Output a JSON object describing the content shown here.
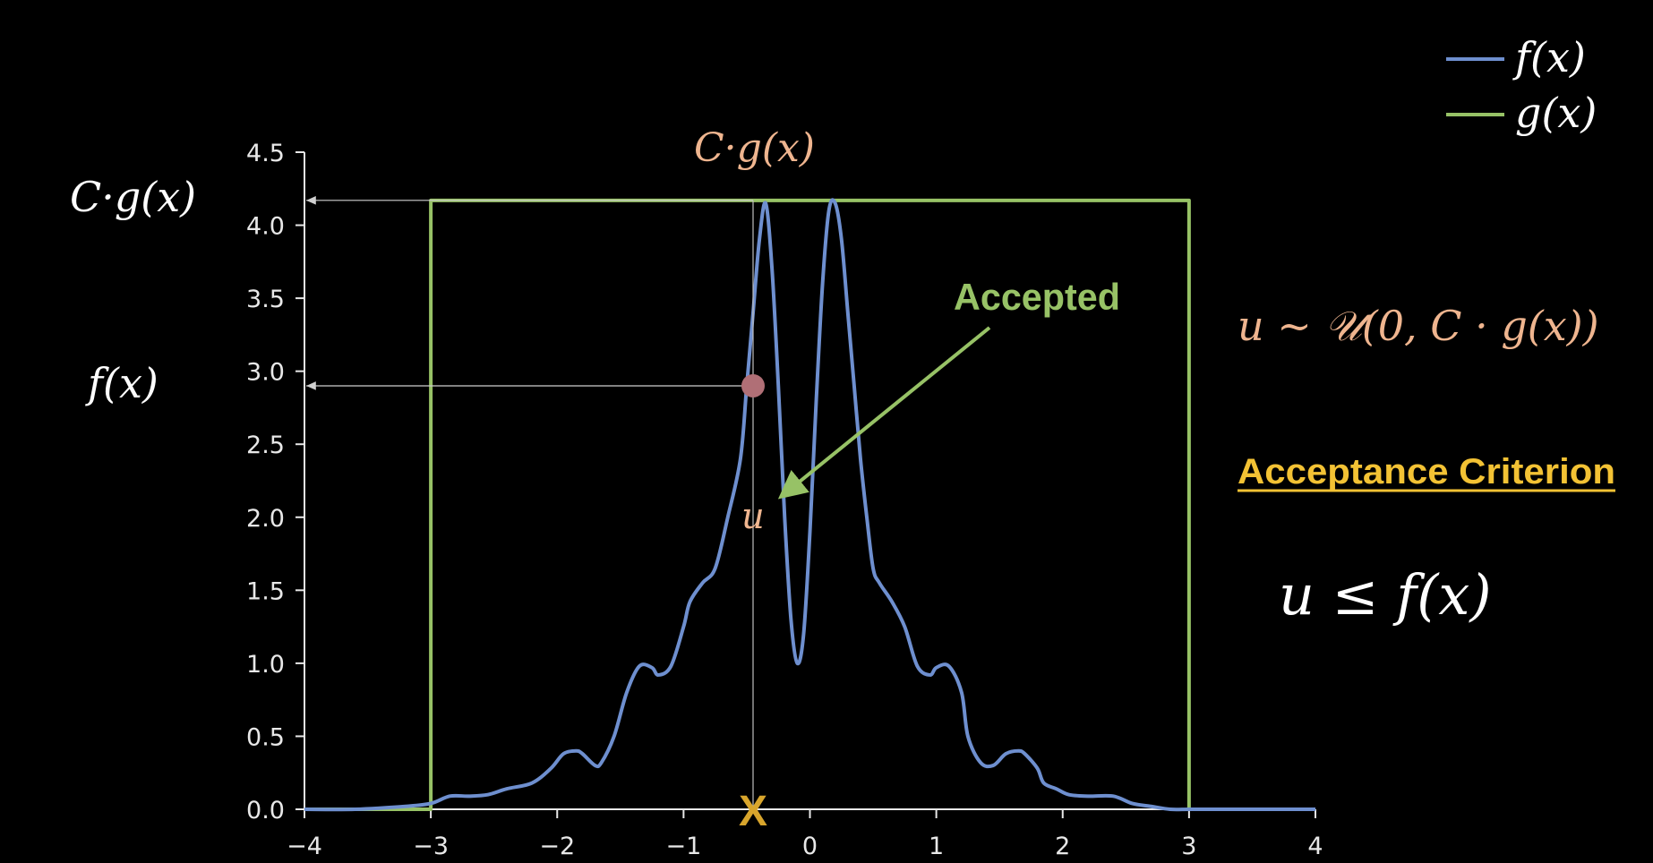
{
  "legend": {
    "placement": "top-right",
    "items": [
      {
        "label": "f(x)",
        "color": "#6e8fcf"
      },
      {
        "label": "g(x)",
        "color": "#97c266"
      }
    ]
  },
  "annotations": {
    "cg_top_label": "C·g(x)",
    "cg_axis_label": "C·g(x)",
    "fx_axis_label": "f(x)",
    "accepted_label": "Accepted",
    "u_label": "u",
    "distribution_formula": "u ~ 𝒰(0, C · g(x))",
    "criterion_title": "Acceptance Criterion",
    "criterion_formula": "u ≤ f(x)",
    "x_marker": "X"
  },
  "colors": {
    "f_curve": "#6e8fcf",
    "g_curve": "#97c266",
    "accent_orange": "#efb58f",
    "criterion_yellow": "#f3c234",
    "marker_gold": "#d8a52c",
    "sample_point": "#b06f76",
    "axis": "#e8e8e8",
    "background": "#000000"
  },
  "chart_data": {
    "type": "line",
    "xlim": [
      -4,
      4
    ],
    "ylim": [
      0,
      4.5
    ],
    "x_ticks": [
      -4,
      -3,
      -2,
      -1,
      0,
      1,
      2,
      3,
      4
    ],
    "x_tick_labels": [
      "−4",
      "−3",
      "−2",
      "−1",
      "0",
      "1",
      "2",
      "3",
      "4"
    ],
    "y_ticks": [
      0,
      0.5,
      1,
      1.5,
      2,
      2.5,
      3,
      3.5,
      4,
      4.5
    ],
    "y_tick_labels": [
      "0.0",
      "0.5",
      "1.0",
      "1.5",
      "2.0",
      "2.5",
      "3.0",
      "3.5",
      "4.0",
      "4.5"
    ],
    "grid": false,
    "series": [
      {
        "name": "f(x)",
        "x": [
          -4,
          -3.6,
          -3.2,
          -3.0,
          -2.85,
          -2.7,
          -2.55,
          -2.4,
          -2.2,
          -2.05,
          -1.95,
          -1.85,
          -1.8,
          -1.7,
          -1.65,
          -1.55,
          -1.45,
          -1.35,
          -1.25,
          -1.2,
          -1.1,
          -1.0,
          -0.95,
          -0.85,
          -0.75,
          -0.65,
          -0.55,
          -0.5,
          -0.45,
          -0.4,
          -0.35,
          -0.3,
          -0.25,
          -0.2,
          -0.15,
          -0.1,
          -0.05,
          0,
          0.05,
          0.1,
          0.15,
          0.2,
          0.25,
          0.3,
          0.35,
          0.4,
          0.45,
          0.5,
          0.55,
          0.65,
          0.75,
          0.85,
          0.95,
          1.0,
          1.1,
          1.2,
          1.25,
          1.35,
          1.45,
          1.55,
          1.65,
          1.7,
          1.8,
          1.85,
          1.95,
          2.05,
          2.2,
          2.4,
          2.55,
          2.7,
          2.85,
          3.0,
          3.2,
          3.6,
          4
        ],
        "y": [
          0.0,
          0.0,
          0.02,
          0.04,
          0.09,
          0.09,
          0.1,
          0.14,
          0.18,
          0.28,
          0.38,
          0.4,
          0.38,
          0.3,
          0.32,
          0.5,
          0.8,
          0.98,
          0.97,
          0.92,
          0.98,
          1.25,
          1.42,
          1.55,
          1.65,
          2.0,
          2.4,
          2.9,
          3.4,
          3.9,
          4.15,
          3.7,
          2.9,
          2.0,
          1.3,
          1.0,
          1.2,
          1.9,
          2.8,
          3.6,
          4.1,
          4.15,
          3.9,
          3.4,
          2.9,
          2.4,
          2.0,
          1.65,
          1.55,
          1.42,
          1.25,
          0.98,
          0.92,
          0.97,
          0.98,
          0.8,
          0.5,
          0.32,
          0.3,
          0.38,
          0.4,
          0.38,
          0.28,
          0.18,
          0.14,
          0.1,
          0.09,
          0.09,
          0.04,
          0.02,
          0.0,
          0.0,
          0.0,
          0.0,
          0.0
        ]
      },
      {
        "name": "g(x)",
        "x": [
          -4,
          -3.0,
          -3.0,
          3.0,
          3.0,
          4
        ],
        "y": [
          0,
          0,
          4.17,
          4.17,
          0,
          0
        ]
      }
    ],
    "sample": {
      "x": -0.45,
      "u": 2.9,
      "cg": 4.17
    }
  }
}
